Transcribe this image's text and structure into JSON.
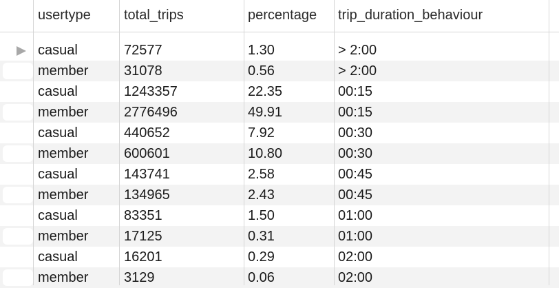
{
  "table": {
    "columns": [
      "usertype",
      "total_trips",
      "percentage",
      "trip_duration_behaviour"
    ],
    "rows": [
      {
        "usertype": "casual",
        "total_trips": "72577",
        "percentage": "1.30",
        "trip_duration_behaviour": "> 2:00"
      },
      {
        "usertype": "member",
        "total_trips": "31078",
        "percentage": "0.56",
        "trip_duration_behaviour": "> 2:00"
      },
      {
        "usertype": "casual",
        "total_trips": "1243357",
        "percentage": "22.35",
        "trip_duration_behaviour": "00:15"
      },
      {
        "usertype": "member",
        "total_trips": "2776496",
        "percentage": "49.91",
        "trip_duration_behaviour": "00:15"
      },
      {
        "usertype": "casual",
        "total_trips": "440652",
        "percentage": "7.92",
        "trip_duration_behaviour": "00:30"
      },
      {
        "usertype": "member",
        "total_trips": "600601",
        "percentage": "10.80",
        "trip_duration_behaviour": "00:30"
      },
      {
        "usertype": "casual",
        "total_trips": "143741",
        "percentage": "2.58",
        "trip_duration_behaviour": "00:45"
      },
      {
        "usertype": "member",
        "total_trips": "134965",
        "percentage": "2.43",
        "trip_duration_behaviour": "00:45"
      },
      {
        "usertype": "casual",
        "total_trips": "83351",
        "percentage": "1.50",
        "trip_duration_behaviour": "01:00"
      },
      {
        "usertype": "member",
        "total_trips": "17125",
        "percentage": "0.31",
        "trip_duration_behaviour": "01:00"
      },
      {
        "usertype": "casual",
        "total_trips": "16201",
        "percentage": "0.29",
        "trip_duration_behaviour": "02:00"
      },
      {
        "usertype": "member",
        "total_trips": "3129",
        "percentage": "0.06",
        "trip_duration_behaviour": "02:00"
      }
    ],
    "selected_row_icon": "triangle-right-icon",
    "colors": {
      "alt_row": "#f3f3f3",
      "grid_line": "#d6d6d6",
      "marker": "#a8a8a8"
    }
  }
}
